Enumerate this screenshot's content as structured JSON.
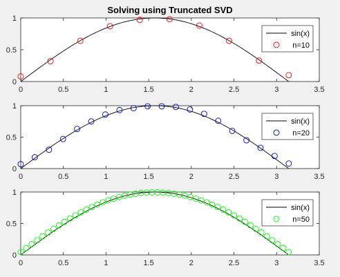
{
  "figure": {
    "background": "#f0f0f0",
    "title": "Solving using Truncated SVD"
  },
  "chart_data": [
    {
      "type": "scatter",
      "title": "Solving using Truncated SVD",
      "xlim": [
        0,
        3.5
      ],
      "ylim": [
        0,
        1
      ],
      "xticks": [
        "0",
        "0.5",
        "1",
        "1.5",
        "2",
        "2.5",
        "3",
        "3.5"
      ],
      "yticks": [
        "0",
        "0.5",
        "1"
      ],
      "legend_position": "top-right",
      "line": {
        "name": "sin(x)",
        "color": "#000000",
        "function": "sin(x)",
        "x_range": [
          0,
          3.1416
        ]
      },
      "series": [
        {
          "name": "n=10",
          "color": "#ff0000",
          "marker": "circle",
          "x": [
            0,
            0.349,
            0.698,
            1.047,
            1.396,
            1.745,
            2.094,
            2.443,
            2.793,
            3.142
          ],
          "y": [
            0.08,
            0.32,
            0.64,
            0.87,
            0.97,
            0.98,
            0.88,
            0.64,
            0.33,
            0.1
          ]
        }
      ]
    },
    {
      "type": "scatter",
      "title": "",
      "xlim": [
        0,
        3.5
      ],
      "ylim": [
        0,
        1
      ],
      "xticks": [
        "0",
        "0.5",
        "1",
        "1.5",
        "2",
        "2.5",
        "3",
        "3.5"
      ],
      "yticks": [
        "0",
        "0.5",
        "1"
      ],
      "legend_position": "top-right",
      "line": {
        "name": "sin(x)",
        "color": "#000000",
        "function": "sin(x)",
        "x_range": [
          0,
          3.1416
        ]
      },
      "series": [
        {
          "name": "n=20",
          "color": "#0000cc",
          "marker": "circle",
          "x": [
            0,
            0.165,
            0.331,
            0.496,
            0.661,
            0.827,
            0.992,
            1.158,
            1.323,
            1.488,
            1.653,
            1.819,
            1.984,
            2.15,
            2.315,
            2.48,
            2.646,
            2.811,
            2.976,
            3.142
          ],
          "y": [
            0.07,
            0.18,
            0.3,
            0.47,
            0.63,
            0.75,
            0.86,
            0.93,
            0.96,
            0.99,
            0.99,
            0.98,
            0.94,
            0.87,
            0.76,
            0.6,
            0.45,
            0.33,
            0.2,
            0.08
          ]
        }
      ]
    },
    {
      "type": "scatter",
      "title": "",
      "xlim": [
        0,
        3.5
      ],
      "ylim": [
        0,
        1
      ],
      "xticks": [
        "0",
        "0.5",
        "1",
        "1.5",
        "2",
        "2.5",
        "3",
        "3.5"
      ],
      "yticks": [
        "0",
        "0.5",
        "1"
      ],
      "legend_position": "top-right",
      "line": {
        "name": "sin(x)",
        "color": "#000000",
        "function": "sin(x)",
        "x_range": [
          0,
          3.1416
        ]
      },
      "series": [
        {
          "name": "n=50",
          "color": "#00ff00",
          "marker": "circle",
          "function": "sin(x) with small offset",
          "count": 50,
          "x_range": [
            0,
            3.1416
          ]
        }
      ]
    }
  ]
}
